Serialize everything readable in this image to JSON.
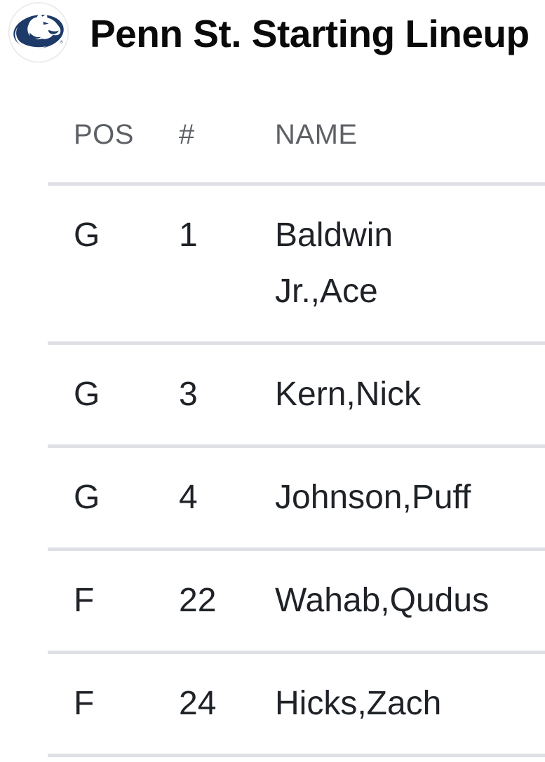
{
  "header": {
    "title": "Penn St. Starting Lineup",
    "logo": "penn-state-nittany-lion"
  },
  "table": {
    "columns": [
      {
        "id": "pos",
        "label": "POS"
      },
      {
        "id": "number",
        "label": "#"
      },
      {
        "id": "name",
        "label": "NAME"
      }
    ],
    "rows": [
      {
        "pos": "G",
        "number": "1",
        "name": "Baldwin Jr.,Ace"
      },
      {
        "pos": "G",
        "number": "3",
        "name": "Kern,Nick"
      },
      {
        "pos": "G",
        "number": "4",
        "name": "Johnson,Puff"
      },
      {
        "pos": "F",
        "number": "22",
        "name": "Wahab,Qudus"
      },
      {
        "pos": "F",
        "number": "24",
        "name": "Hicks,Zach"
      }
    ]
  },
  "colors": {
    "background": "#ffffff",
    "title_text": "#0a0a0b",
    "cell_text": "#1f2227",
    "column_header_text": "#5d6166",
    "divider": "#dee0e5",
    "logo_navy": "#1d3a68",
    "logo_ring": "#ebebeb"
  }
}
